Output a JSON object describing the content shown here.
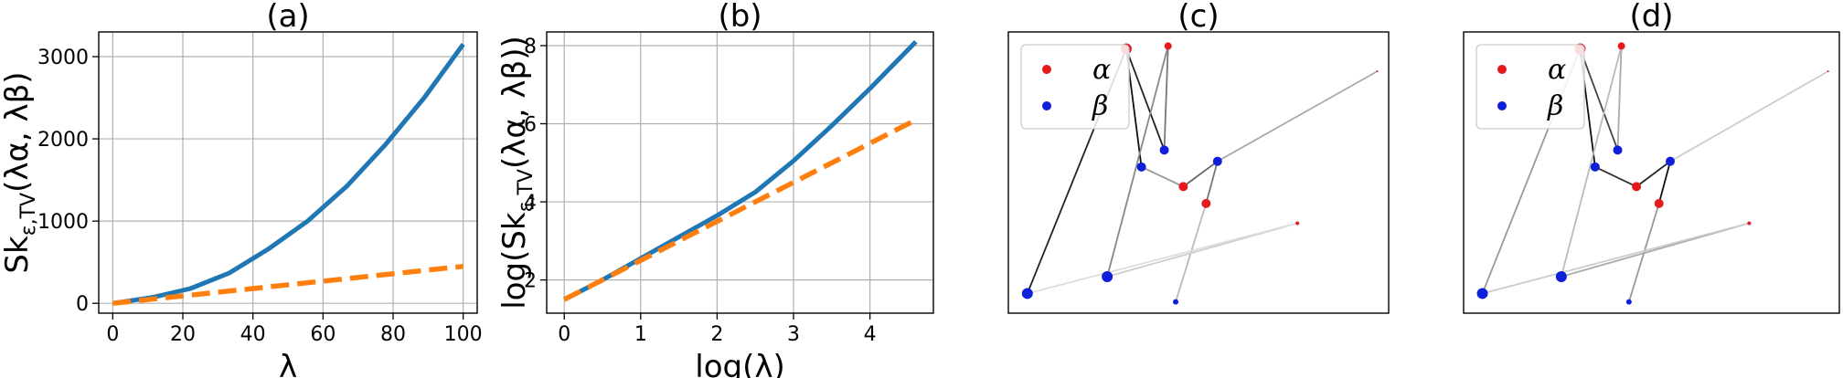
{
  "chart_data": [
    {
      "type": "line",
      "title": "(a)",
      "xlabel": "λ",
      "ylabel": "Sk",
      "ylabel_sub": "ε,TV",
      "ylabel_args": "(λα, λβ)",
      "xlim": [
        -4,
        104
      ],
      "ylim": [
        -120,
        3300
      ],
      "xticks": [
        0,
        20,
        40,
        60,
        80,
        100
      ],
      "yticks": [
        0,
        1000,
        2000,
        3000
      ],
      "grid": true,
      "series": [
        {
          "color": "#1f77b4",
          "style": "solid",
          "x": [
            0,
            11.1,
            22.2,
            33.3,
            44.4,
            55.6,
            66.7,
            77.8,
            88.9,
            100
          ],
          "y": [
            0,
            70,
            180,
            370,
            660,
            1000,
            1420,
            1930,
            2500,
            3150
          ]
        },
        {
          "color": "#ff7f0e",
          "style": "dashed",
          "x": [
            0,
            100
          ],
          "y": [
            0,
            450
          ]
        }
      ]
    },
    {
      "type": "line",
      "title": "(b)",
      "xlabel": "log(λ)",
      "ylabel": "log(Sk",
      "ylabel_sub": "ε,TV",
      "ylabel_args": "(λα, λβ))",
      "xlim": [
        -0.23,
        4.83
      ],
      "ylim": [
        1.15,
        8.35
      ],
      "xticks": [
        0,
        1,
        2,
        3,
        4
      ],
      "yticks": [
        2,
        4,
        6,
        8
      ],
      "grid": true,
      "series": [
        {
          "color": "#1f77b4",
          "style": "solid",
          "x": [
            0,
            0.5,
            1.0,
            1.5,
            2.0,
            2.5,
            3.0,
            3.5,
            4.0,
            4.6
          ],
          "y": [
            1.5,
            2.0,
            2.55,
            3.1,
            3.65,
            4.25,
            5.05,
            5.95,
            6.9,
            8.1
          ]
        },
        {
          "color": "#ff7f0e",
          "style": "dashed",
          "x": [
            0,
            4.6
          ],
          "y": [
            1.5,
            6.1
          ]
        }
      ]
    },
    {
      "type": "scatter",
      "title": "(c)",
      "legend": {
        "placement": "upper-left",
        "entries": [
          {
            "label": "α",
            "color": "#e41a1c"
          },
          {
            "label": "β",
            "color": "#0d1fd8"
          }
        ]
      },
      "alpha_points": [
        [
          0.31,
          0.94,
          6
        ],
        [
          0.42,
          0.95,
          4
        ],
        [
          0.46,
          0.45,
          5
        ],
        [
          0.52,
          0.39,
          5
        ],
        [
          0.76,
          0.32,
          2
        ],
        [
          0.97,
          0.86,
          1
        ]
      ],
      "beta_points": [
        [
          0.05,
          0.07,
          6
        ],
        [
          0.26,
          0.13,
          6
        ],
        [
          0.35,
          0.52,
          5
        ],
        [
          0.41,
          0.58,
          5
        ],
        [
          0.44,
          0.04,
          3
        ],
        [
          0.55,
          0.54,
          5
        ]
      ],
      "edges": [
        [
          0,
          2,
          "#111111"
        ],
        [
          0,
          3,
          "#222222"
        ],
        [
          0,
          0,
          "#222222"
        ],
        [
          1,
          3,
          "#777777"
        ],
        [
          1,
          1,
          "#888888"
        ],
        [
          2,
          5,
          "#666666"
        ],
        [
          3,
          5,
          "#777777"
        ],
        [
          2,
          2,
          "#999999"
        ],
        [
          3,
          4,
          "#bbbbbb"
        ],
        [
          4,
          1,
          "#cccccc"
        ],
        [
          4,
          0,
          "#dddddd"
        ],
        [
          5,
          5,
          "#aaaaaa"
        ]
      ]
    },
    {
      "type": "scatter",
      "title": "(d)",
      "legend": {
        "placement": "upper-left",
        "entries": [
          {
            "label": "α",
            "color": "#e41a1c"
          },
          {
            "label": "β",
            "color": "#0d1fd8"
          }
        ]
      },
      "alpha_points": [
        [
          0.31,
          0.94,
          6
        ],
        [
          0.42,
          0.95,
          4
        ],
        [
          0.46,
          0.45,
          5
        ],
        [
          0.52,
          0.39,
          5
        ],
        [
          0.76,
          0.32,
          2
        ],
        [
          0.97,
          0.86,
          1
        ]
      ],
      "beta_points": [
        [
          0.05,
          0.07,
          6
        ],
        [
          0.26,
          0.13,
          6
        ],
        [
          0.35,
          0.52,
          5
        ],
        [
          0.41,
          0.58,
          5
        ],
        [
          0.44,
          0.04,
          3
        ],
        [
          0.55,
          0.54,
          5
        ]
      ],
      "edges": [
        [
          0,
          2,
          "#111111"
        ],
        [
          0,
          3,
          "#444444"
        ],
        [
          0,
          0,
          "#999999"
        ],
        [
          1,
          3,
          "#aaaaaa"
        ],
        [
          1,
          1,
          "#bbbbbb"
        ],
        [
          2,
          5,
          "#222222"
        ],
        [
          3,
          5,
          "#111111"
        ],
        [
          2,
          2,
          "#333333"
        ],
        [
          3,
          4,
          "#999999"
        ],
        [
          4,
          1,
          "#aaaaaa"
        ],
        [
          4,
          0,
          "#cccccc"
        ],
        [
          5,
          5,
          "#cccccc"
        ]
      ]
    }
  ]
}
